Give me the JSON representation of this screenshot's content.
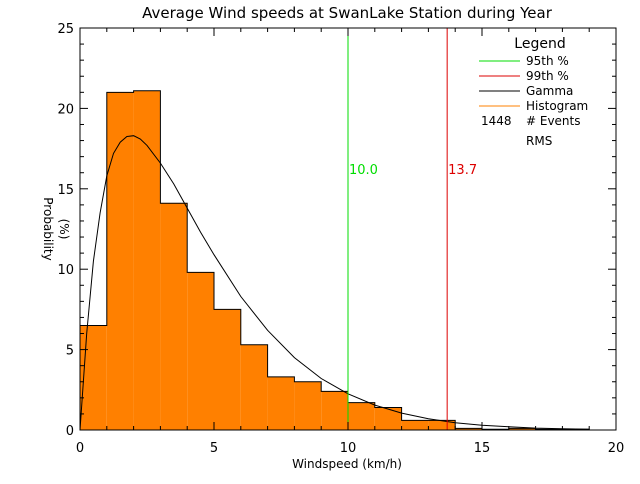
{
  "chart_data": {
    "type": "bar",
    "title": "Average Wind speeds at SwanLake Station during Year",
    "xlabel": "Windspeed (km/h)",
    "ylabel_line1": "Probability",
    "ylabel_line2": "(%)",
    "xlim": [
      0,
      20
    ],
    "ylim": [
      0,
      25
    ],
    "xticks": [
      0,
      5,
      10,
      15,
      20
    ],
    "yticks": [
      0,
      5,
      10,
      15,
      20,
      25
    ],
    "grid": false,
    "legend_position": "top-right",
    "legend": {
      "title": "Legend",
      "entries": [
        {
          "label": "95th %",
          "color": "#00dd00"
        },
        {
          "label": "99th %",
          "color": "#dd0000"
        },
        {
          "label": "Gamma",
          "color": "#000000"
        },
        {
          "label": "Histogram",
          "color": "#ff8000"
        }
      ],
      "events_count": "1448",
      "events_label": "# Events",
      "rms_label": "RMS"
    },
    "histogram": {
      "color": "#ff8000",
      "bin_edges": [
        0,
        1,
        2,
        3,
        4,
        5,
        6,
        7,
        8,
        9,
        10,
        11,
        12,
        13,
        14,
        15,
        16,
        17,
        18,
        19
      ],
      "values": [
        6.5,
        21.0,
        21.1,
        14.1,
        9.8,
        7.5,
        5.3,
        3.3,
        3.0,
        2.4,
        1.7,
        1.4,
        0.6,
        0.6,
        0.1,
        0.05,
        0.1,
        0.05,
        0.05
      ]
    },
    "gamma": {
      "color": "#000000",
      "x": [
        0,
        0.25,
        0.5,
        0.75,
        1.0,
        1.25,
        1.5,
        1.75,
        2.0,
        2.25,
        2.5,
        3.0,
        3.5,
        4.0,
        4.5,
        5.0,
        6.0,
        7.0,
        8.0,
        9.0,
        10.0,
        11.0,
        12.0,
        13.0,
        14.0,
        15.0,
        16.0,
        17.0,
        18.0,
        19.0
      ],
      "y": [
        0,
        6.0,
        10.5,
        13.5,
        15.8,
        17.2,
        17.9,
        18.25,
        18.3,
        18.1,
        17.7,
        16.6,
        15.3,
        13.8,
        12.3,
        10.9,
        8.3,
        6.2,
        4.5,
        3.2,
        2.25,
        1.55,
        1.05,
        0.7,
        0.45,
        0.3,
        0.2,
        0.12,
        0.08,
        0.05
      ]
    },
    "percentile_lines": [
      {
        "name": "95th %",
        "x": 10.0,
        "label": "10.0",
        "color": "#00dd00"
      },
      {
        "name": "99th %",
        "x": 13.7,
        "label": "13.7",
        "color": "#dd0000"
      }
    ]
  }
}
